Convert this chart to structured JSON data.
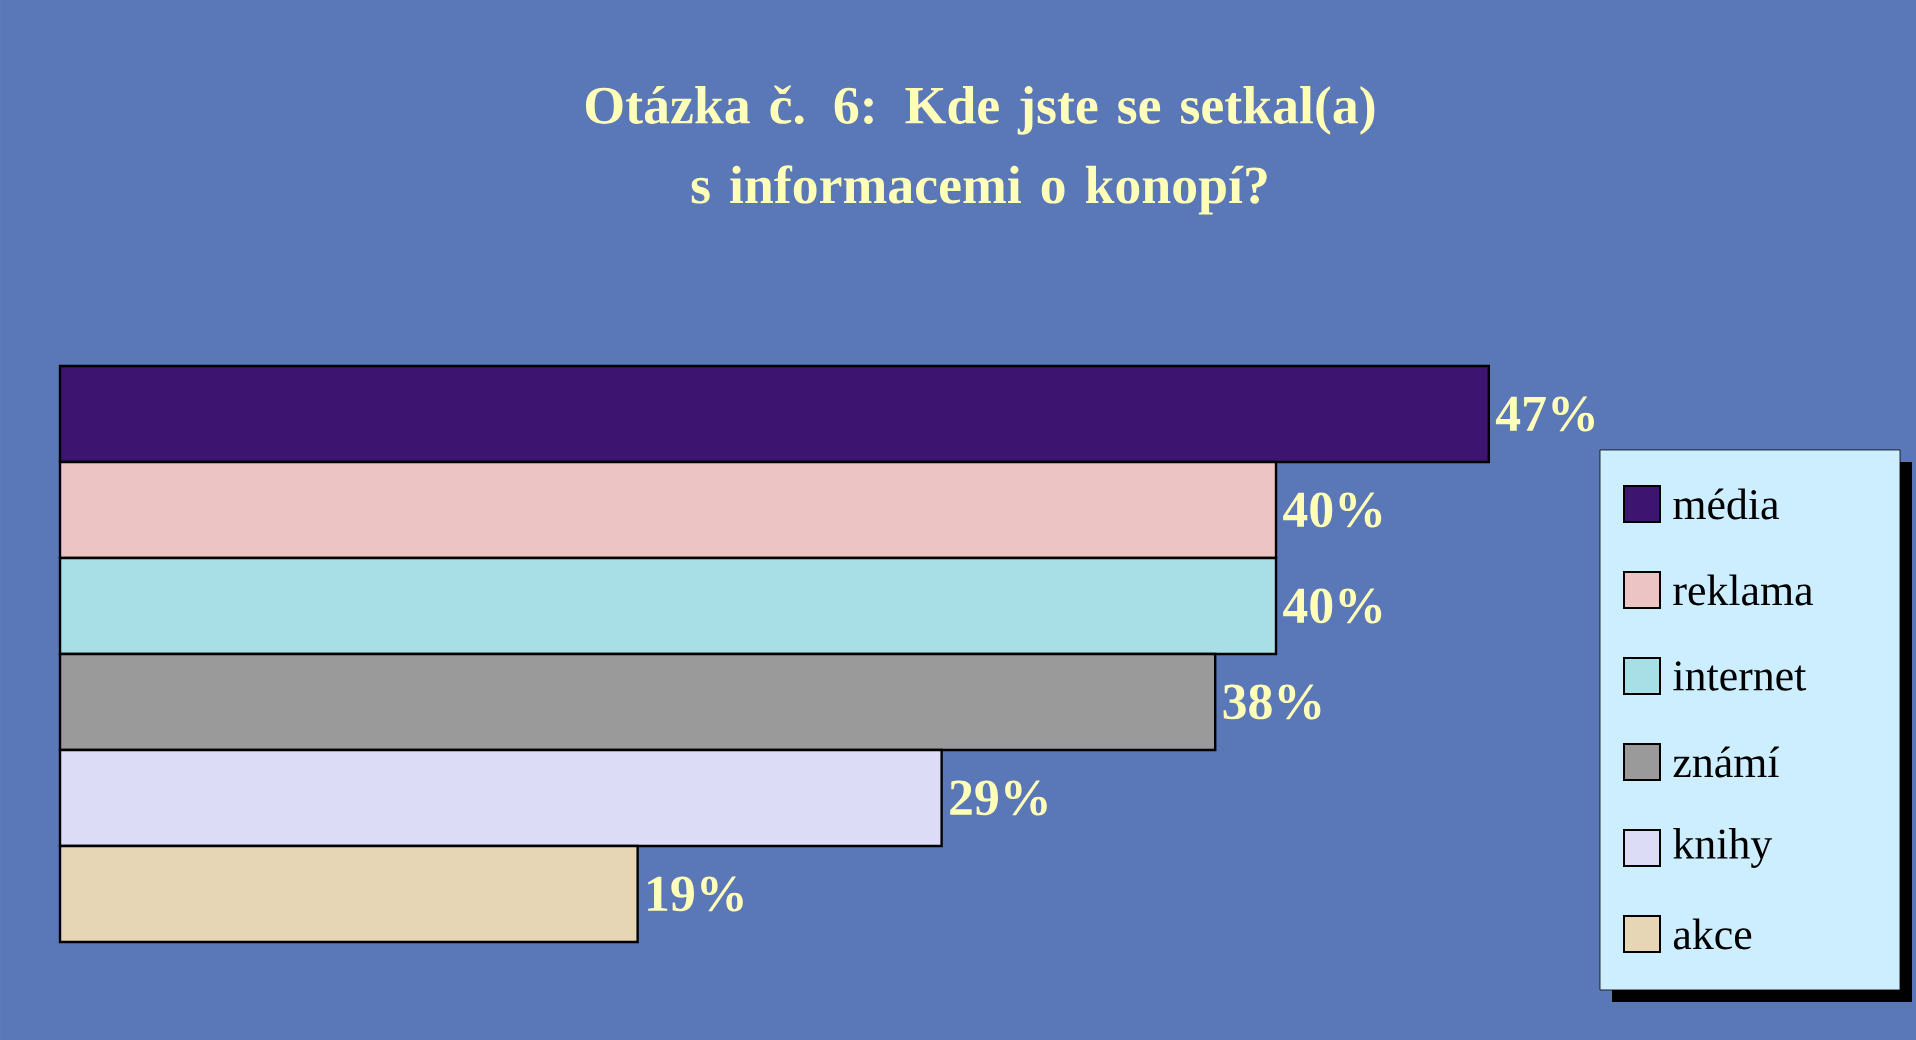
{
  "chart_data": {
    "type": "bar",
    "orientation": "horizontal",
    "title": "Otázka č. 6: Kde jste se setkal(a) s informacemi o konopí?",
    "categories": [
      null
    ],
    "legend": "right",
    "series": [
      {
        "name": "média",
        "color": "#3d1470",
        "values": [
          47
        ],
        "value_labels": [
          "47%"
        ]
      },
      {
        "name": "reklama",
        "color": "#ecc4c4",
        "values": [
          40
        ],
        "value_labels": [
          "40%"
        ]
      },
      {
        "name": "internet",
        "color": "#a8dfe6",
        "values": [
          40
        ],
        "value_labels": [
          "40%"
        ]
      },
      {
        "name": "známí",
        "color": "#9a9a9a",
        "values": [
          38
        ],
        "value_labels": [
          "38%"
        ]
      },
      {
        "name": "knihy",
        "color": "#dcdcf6",
        "values": [
          29
        ],
        "value_labels": [
          "29%"
        ]
      },
      {
        "name": "akce",
        "color": "#e6d6b6",
        "values": [
          19
        ],
        "value_labels": [
          "19%"
        ]
      }
    ]
  }
}
